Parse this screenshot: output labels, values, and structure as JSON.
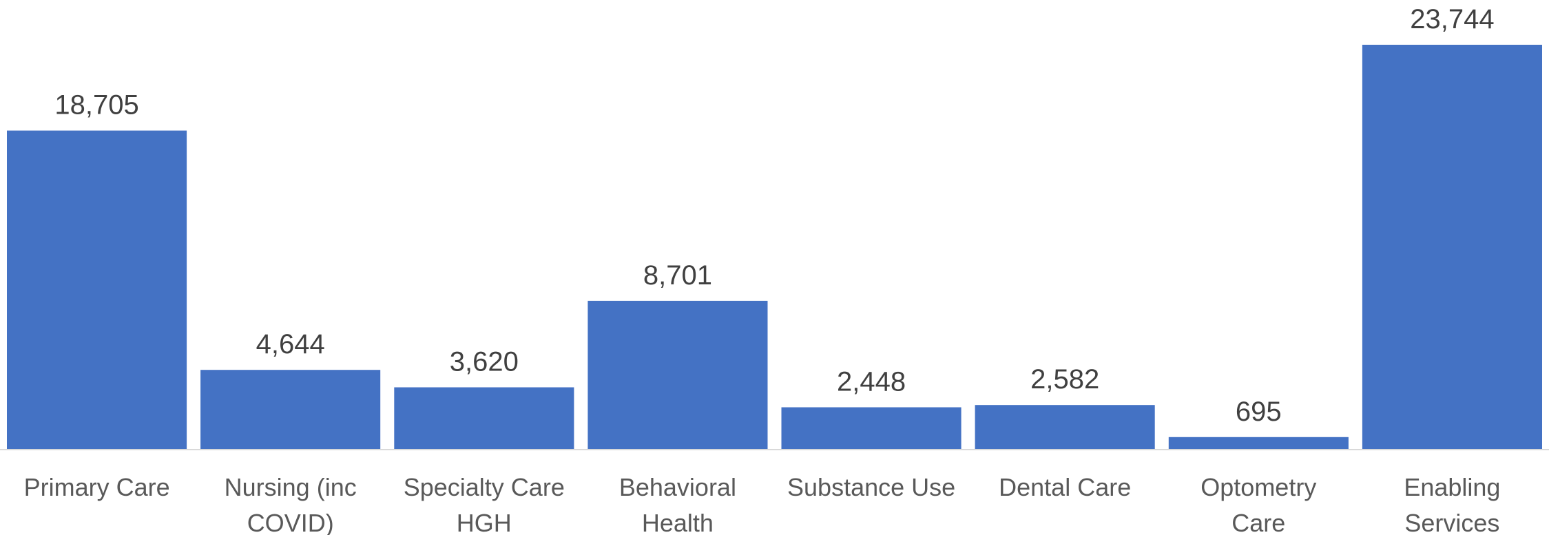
{
  "chart_data": {
    "type": "bar",
    "title": "",
    "xlabel": "",
    "ylabel": "",
    "categories": [
      [
        "Primary Care"
      ],
      [
        "Nursing (inc",
        "COVID)"
      ],
      [
        "Specialty Care",
        "HGH"
      ],
      [
        "Behavioral",
        "Health"
      ],
      [
        "Substance Use"
      ],
      [
        "Dental Care"
      ],
      [
        "Optometry",
        "Care"
      ],
      [
        "Enabling",
        "Services"
      ]
    ],
    "values": [
      18705,
      4644,
      3620,
      8701,
      2448,
      2582,
      695,
      23744
    ],
    "value_labels": [
      "18,705",
      "4,644",
      "3,620",
      "8,701",
      "2,448",
      "2,582",
      "695",
      "23,744"
    ],
    "ylim": [
      0,
      23744
    ],
    "grid": false,
    "legend": "none",
    "colors": {
      "bar": "#4472C4",
      "axis": "#D9D9D9"
    }
  }
}
